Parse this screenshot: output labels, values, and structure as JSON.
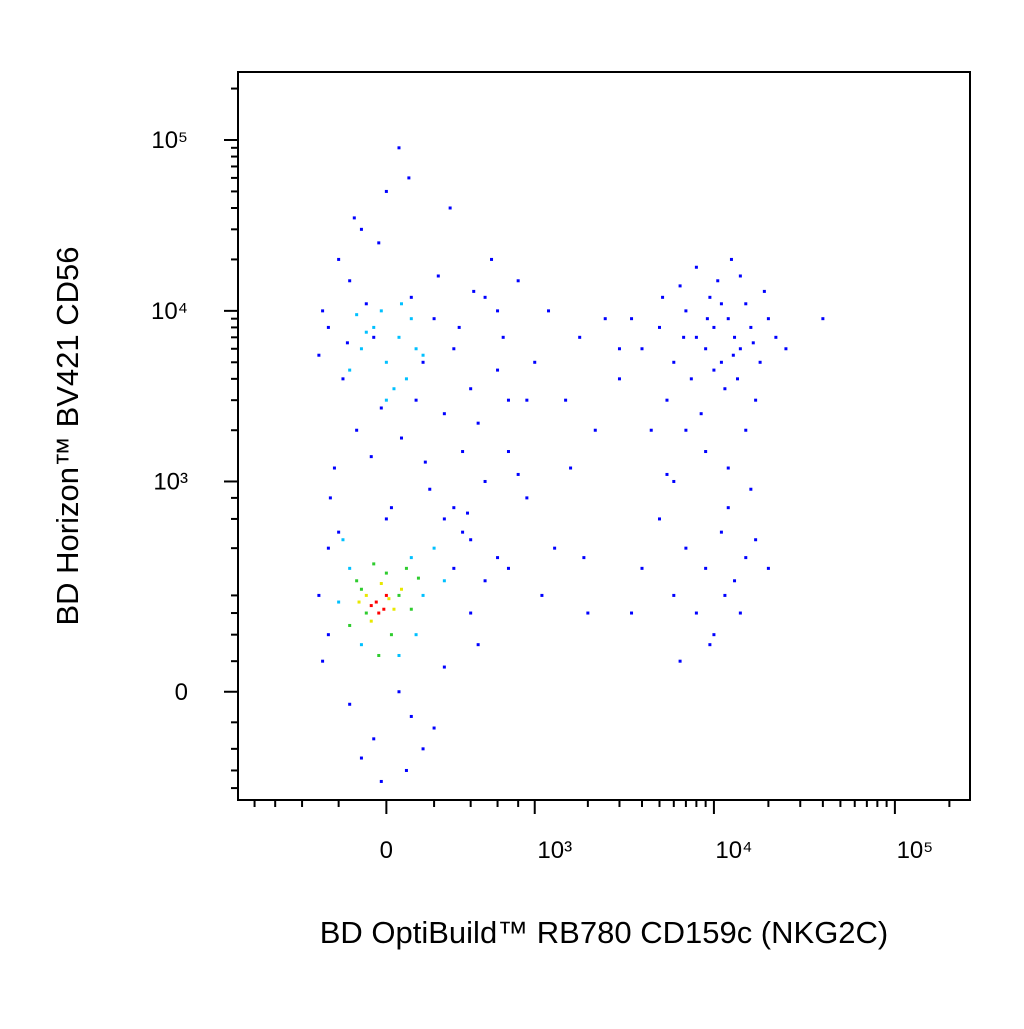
{
  "chart_data": {
    "type": "scatter",
    "xlabel": "BD OptiBuild™ RB780 CD159c (NKG2C)",
    "ylabel": "BD Horizon™ BV421 CD56",
    "xscale": "asinh",
    "xcofactor": 310,
    "yscale": "asinh",
    "ycofactor": 118,
    "xlim": [
      -1000,
      260000
    ],
    "ylim": [
      -240,
      250000
    ],
    "xticks": [
      0,
      {
        "value": 1000,
        "label": "10³"
      },
      {
        "value": 10000,
        "label": "10⁴"
      },
      {
        "value": 100000,
        "label": "10⁵"
      }
    ],
    "yticks": [
      0,
      {
        "value": 1000,
        "label": "10³"
      },
      {
        "value": 10000,
        "label": "10⁴"
      },
      {
        "value": 100000,
        "label": "10⁵"
      }
    ],
    "xminorticks": [
      -800,
      -600,
      -400,
      -200,
      200,
      400,
      600,
      800,
      2000,
      3000,
      4000,
      5000,
      6000,
      7000,
      8000,
      9000,
      20000,
      30000,
      40000,
      50000,
      60000,
      70000,
      80000,
      90000,
      200000
    ],
    "yminorticks": [
      -200,
      -150,
      -100,
      -50,
      50,
      100,
      150,
      200,
      400,
      600,
      800,
      2000,
      3000,
      4000,
      5000,
      6000,
      7000,
      8000,
      9000,
      20000,
      30000,
      40000,
      50000,
      60000,
      70000,
      80000,
      90000,
      200000
    ],
    "series": [
      {
        "color": "#0000ff",
        "x": [
          -200,
          -100,
          0,
          50,
          -150,
          100,
          200,
          -250,
          -50,
          300,
          150,
          -180,
          400,
          250,
          -120,
          60,
          350,
          -220,
          500,
          180,
          -80,
          220,
          -300,
          120,
          450,
          -30,
          280,
          -160,
          330,
          600,
          700,
          800,
          900,
          -60,
          20,
          380,
          -240,
          250,
          550,
          -280,
          90,
          -130,
          420,
          160,
          -20,
          650,
          -250,
          -300,
          300,
          400,
          500,
          350,
          -200,
          0,
          250,
          -150,
          100,
          -50,
          50,
          600,
          450,
          -280,
          200,
          700,
          150,
          -100,
          300,
          -250,
          400,
          80,
          -20,
          1000,
          1200,
          1500,
          1800,
          700,
          900,
          1100,
          2000,
          1600,
          2500,
          600,
          1300,
          3000,
          2200,
          1900,
          500,
          800,
          4000,
          5000,
          6000,
          7000,
          8000,
          9000,
          10000,
          11000,
          12000,
          13000,
          14000,
          15000,
          16000,
          18000,
          20000,
          22000,
          7500,
          9500,
          10500,
          12500,
          6500,
          5500,
          4500,
          8500,
          11500,
          13500,
          17000,
          9000,
          6000,
          12000,
          15000,
          3500,
          3000,
          25000,
          40000,
          8000,
          14000,
          19000,
          7000,
          10000,
          11000,
          6800,
          9200,
          12800,
          5200,
          16500,
          5000,
          7000,
          9000,
          11000,
          13000,
          15000,
          8000,
          10000,
          6000,
          12000,
          4000,
          14000,
          17000,
          3500,
          20000,
          6500,
          9500,
          11500,
          16000,
          5500
        ],
        "y": [
          20000,
          30000,
          50000,
          90000,
          15000,
          12000,
          9000,
          8000,
          7000,
          6000,
          5000,
          4000,
          3500,
          2500,
          2000,
          1800,
          1500,
          1200,
          1000,
          900,
          11000,
          16000,
          5500,
          3000,
          2200,
          25000,
          40000,
          6500,
          8000,
          4500,
          1500,
          1100,
          3000,
          1400,
          700,
          650,
          800,
          600,
          20000,
          10000,
          60000,
          35000,
          13000,
          1300,
          2700,
          7000,
          100,
          200,
          300,
          150,
          250,
          500,
          500,
          600,
          40,
          -20,
          -40,
          -80,
          0,
          350,
          80,
          50,
          -60,
          300,
          -100,
          -120,
          700,
          400,
          450,
          -150,
          -180,
          5000,
          10000,
          3000,
          7000,
          3000,
          800,
          200,
          150,
          1200,
          9000,
          10000,
          400,
          6000,
          2000,
          350,
          12000,
          15000,
          6000,
          8000,
          5000,
          10000,
          7000,
          6000,
          8000,
          5000,
          9000,
          7000,
          6000,
          11000,
          8000,
          5000,
          9000,
          7000,
          4000,
          12000,
          15000,
          20000,
          14000,
          3000,
          2000,
          2500,
          3500,
          4000,
          3000,
          1500,
          1000,
          1200,
          2000,
          9000,
          4000,
          6000,
          9000,
          18000,
          16000,
          13000,
          2000,
          4500,
          11000,
          7000,
          9000,
          5500,
          12000,
          6500,
          600,
          400,
          300,
          500,
          250,
          350,
          150,
          100,
          200,
          700,
          300,
          150,
          450,
          150,
          300,
          50,
          80,
          200,
          900,
          1100
        ]
      },
      {
        "color": "#00c0ff",
        "x": [
          -100,
          -50,
          0,
          50,
          100,
          -150,
          80,
          -20,
          120,
          30,
          -80,
          150,
          -120,
          60,
          0,
          -150,
          100,
          -200,
          150,
          -100,
          50,
          200,
          -180,
          250,
          120
        ],
        "y": [
          6000,
          8000,
          5000,
          7000,
          9000,
          4500,
          4000,
          10000,
          6000,
          3500,
          7500,
          5500,
          9500,
          11000,
          3000,
          300,
          350,
          180,
          200,
          80,
          60,
          400,
          450,
          250,
          100
        ]
      },
      {
        "color": "#2ecc2e",
        "x": [
          -120,
          -80,
          0,
          50,
          100,
          -150,
          80,
          -50,
          20,
          -100,
          130,
          -30
        ],
        "y": [
          250,
          150,
          280,
          200,
          160,
          120,
          300,
          320,
          100,
          220,
          260,
          60
        ]
      },
      {
        "color": "#e8e800",
        "x": [
          -80,
          -20,
          30,
          -60,
          60,
          -110,
          10
        ],
        "y": [
          200,
          240,
          160,
          130,
          220,
          180,
          190
        ]
      },
      {
        "color": "#ff0000",
        "x": [
          -40,
          -10,
          -60,
          0,
          -30
        ],
        "y": [
          180,
          160,
          170,
          200,
          150
        ]
      }
    ]
  }
}
